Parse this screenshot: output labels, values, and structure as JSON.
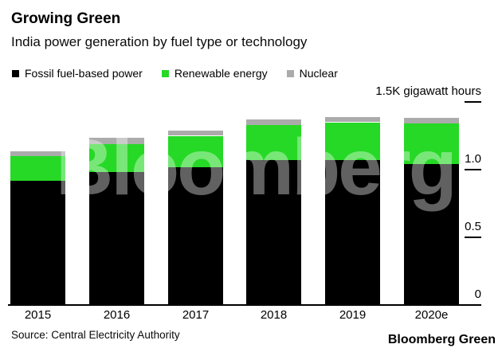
{
  "header": {
    "title": "Growing Green",
    "subtitle": "India power generation by fuel type or technology"
  },
  "chart_data": {
    "type": "bar",
    "stacked": true,
    "categories": [
      "2015",
      "2016",
      "2017",
      "2018",
      "2019",
      "2020e"
    ],
    "series": [
      {
        "name": "Fossil fuel-based power",
        "color": "#000000",
        "values": [
          0.92,
          0.98,
          1.02,
          1.07,
          1.07,
          1.04
        ]
      },
      {
        "name": "Renewable energy",
        "color": "#26d926",
        "values": [
          0.18,
          0.21,
          0.23,
          0.26,
          0.28,
          0.3
        ]
      },
      {
        "name": "Nuclear",
        "color": "#ababab",
        "values": [
          0.035,
          0.045,
          0.04,
          0.04,
          0.04,
          0.045
        ]
      }
    ],
    "unit": "K gigawatt hours",
    "y_ticks": [
      {
        "label": "0",
        "value": 0,
        "tick": false
      },
      {
        "label": "0.5",
        "value": 0.5,
        "tick": true
      },
      {
        "label": "1.0",
        "value": 1.0,
        "tick": true
      },
      {
        "label": "1.5K gigawatt hours",
        "value": 1.5,
        "tick": true
      }
    ],
    "ylim": [
      0,
      1.56
    ],
    "grid": false,
    "legend_position": "top",
    "xlabel": "",
    "ylabel": "gigawatt hours"
  },
  "watermark": "Bloomberg",
  "footer": {
    "source": "Source: Central Electricity Authority",
    "brand": "Bloomberg Green"
  }
}
